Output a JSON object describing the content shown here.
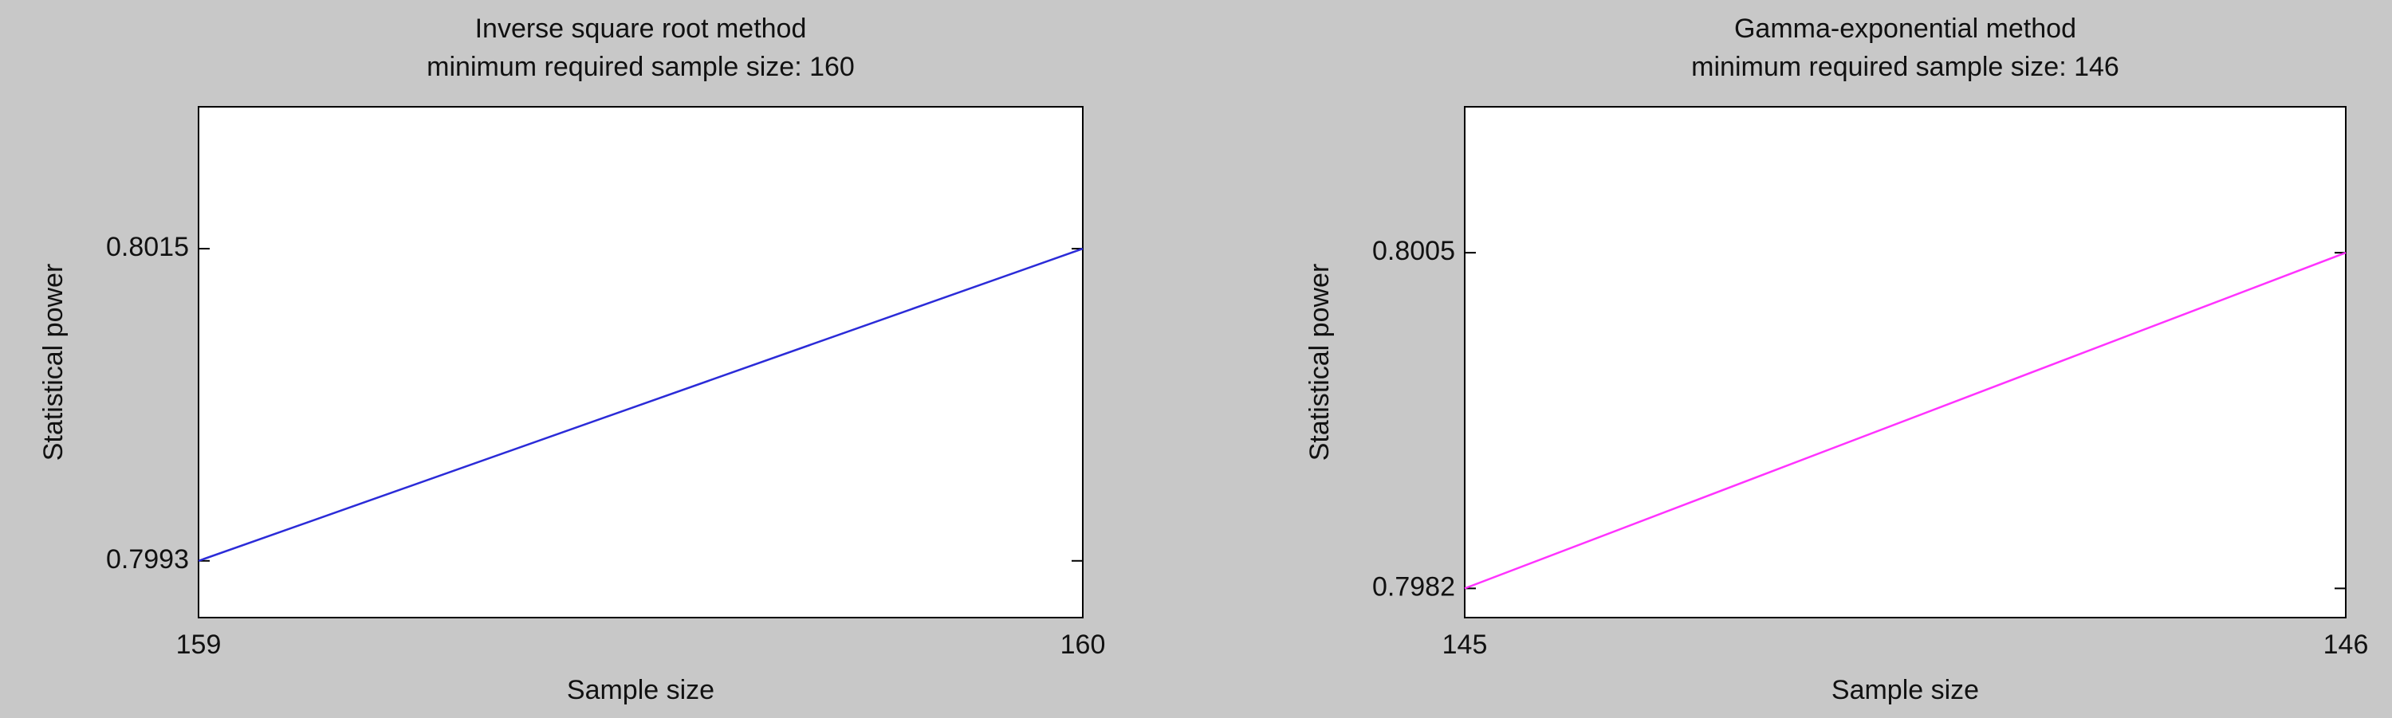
{
  "chart_data": [
    {
      "type": "line",
      "title": "Inverse square root method",
      "subtitle": "minimum required sample size: 160",
      "x_label": "Sample size",
      "y_label": "Statistical power",
      "x": [
        159,
        160
      ],
      "series": [
        {
          "color": "#2b2bd8",
          "values": [
            0.7993,
            0.8015
          ]
        }
      ],
      "xlim": [
        159,
        160
      ],
      "xticks": [
        159,
        160
      ],
      "ylim": [
        0.7989,
        0.8025
      ],
      "yticks": [
        0.7993,
        0.8015
      ]
    },
    {
      "type": "line",
      "title": "Gamma-exponential method",
      "subtitle": "minimum required sample size: 146",
      "x_label": "Sample size",
      "y_label": "Statistical power",
      "x": [
        145,
        146
      ],
      "series": [
        {
          "color": "#ff33ff",
          "values": [
            0.7982,
            0.8005
          ]
        }
      ],
      "xlim": [
        145,
        146
      ],
      "xticks": [
        145,
        146
      ],
      "ylim": [
        0.798,
        0.8015
      ],
      "yticks": [
        0.7982,
        0.8005
      ]
    }
  ]
}
